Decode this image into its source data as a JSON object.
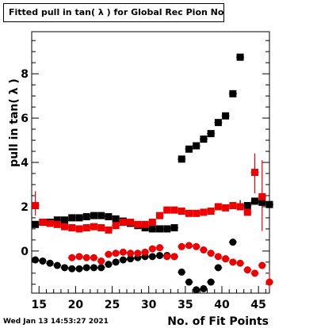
{
  "title": "Fitted pull in tan( λ ) for Global Rec Pion NoHits",
  "date_stamp": "Wed Jan 13 14:53:27 2021",
  "colors": {
    "black_series": "#000000",
    "red_series": "#ee0000",
    "frame": "#000000"
  },
  "chart_data": {
    "type": "scatter",
    "xlabel": "No. of Fit Points",
    "ylabel": "pull in tan( λ )",
    "xlim": [
      14,
      46.5
    ],
    "ylim": [
      -1.9,
      9.9
    ],
    "x_ticks": [
      15,
      20,
      25,
      30,
      35,
      40,
      45
    ],
    "y_ticks": [
      0,
      2,
      4,
      6,
      8
    ],
    "grid": false,
    "series": [
      {
        "marker": "square",
        "color": "#000000",
        "points": [
          [
            14.5,
            1.2
          ],
          [
            15.5,
            1.3
          ],
          [
            16.5,
            1.3
          ],
          [
            17.5,
            1.4
          ],
          [
            18.5,
            1.4
          ],
          [
            19.5,
            1.5
          ],
          [
            20.5,
            1.5
          ],
          [
            21.5,
            1.55
          ],
          [
            22.5,
            1.6
          ],
          [
            23.5,
            1.6
          ],
          [
            24.5,
            1.55
          ],
          [
            25.5,
            1.45
          ],
          [
            26.5,
            1.35
          ],
          [
            27.5,
            1.25
          ],
          [
            28.5,
            1.15
          ],
          [
            29.5,
            1.05
          ],
          [
            30.5,
            1.0
          ],
          [
            31.5,
            1.0
          ],
          [
            32.5,
            1.0
          ],
          [
            33.5,
            1.05
          ],
          [
            34.5,
            4.15
          ],
          [
            35.5,
            4.6
          ],
          [
            36.5,
            4.75
          ],
          [
            37.5,
            5.05
          ],
          [
            38.5,
            5.3
          ],
          [
            39.5,
            5.8
          ],
          [
            40.5,
            6.1
          ],
          [
            41.5,
            7.1
          ],
          [
            42.5,
            8.75
          ],
          [
            43.5,
            2.05
          ],
          [
            44.5,
            2.25
          ],
          [
            45.5,
            2.2
          ],
          [
            46.5,
            2.1
          ]
        ]
      },
      {
        "marker": "square",
        "color": "#ee0000",
        "points": [
          [
            14.5,
            2.05
          ],
          [
            15.5,
            1.3
          ],
          [
            16.5,
            1.25
          ],
          [
            17.5,
            1.2
          ],
          [
            18.5,
            1.1
          ],
          [
            19.5,
            1.05
          ],
          [
            20.5,
            1.0
          ],
          [
            21.5,
            1.05
          ],
          [
            22.5,
            1.1
          ],
          [
            23.5,
            1.05
          ],
          [
            24.5,
            0.95
          ],
          [
            25.5,
            1.15
          ],
          [
            26.5,
            1.3
          ],
          [
            27.5,
            1.3
          ],
          [
            28.5,
            1.2
          ],
          [
            29.5,
            1.2
          ],
          [
            30.5,
            1.3
          ],
          [
            31.5,
            1.6
          ],
          [
            32.5,
            1.85
          ],
          [
            33.5,
            1.85
          ],
          [
            34.5,
            1.8
          ],
          [
            35.5,
            1.7
          ],
          [
            36.5,
            1.7
          ],
          [
            37.5,
            1.75
          ],
          [
            38.5,
            1.8
          ],
          [
            39.5,
            2.0
          ],
          [
            40.5,
            1.95
          ],
          [
            41.5,
            2.05
          ],
          [
            42.5,
            2.0
          ],
          [
            43.5,
            1.75
          ],
          [
            44.5,
            3.55
          ],
          [
            45.5,
            2.45
          ]
        ]
      },
      {
        "marker": "circle",
        "color": "#000000",
        "points": [
          [
            14.5,
            -0.4
          ],
          [
            15.5,
            -0.45
          ],
          [
            16.5,
            -0.55
          ],
          [
            17.5,
            -0.65
          ],
          [
            18.5,
            -0.75
          ],
          [
            19.5,
            -0.8
          ],
          [
            20.5,
            -0.8
          ],
          [
            21.5,
            -0.75
          ],
          [
            22.5,
            -0.75
          ],
          [
            23.5,
            -0.75
          ],
          [
            24.5,
            -0.6
          ],
          [
            25.5,
            -0.5
          ],
          [
            26.5,
            -0.4
          ],
          [
            27.5,
            -0.35
          ],
          [
            28.5,
            -0.3
          ],
          [
            29.5,
            -0.25
          ],
          [
            30.5,
            -0.25
          ],
          [
            31.5,
            -0.2
          ],
          [
            32.5,
            -0.2
          ],
          [
            33.5,
            -0.25
          ],
          [
            34.5,
            -0.95
          ],
          [
            35.5,
            -1.4
          ],
          [
            36.5,
            -1.75
          ],
          [
            37.5,
            -1.7
          ],
          [
            38.5,
            -1.4
          ],
          [
            39.5,
            -0.75
          ],
          [
            40.5,
            -0.35
          ],
          [
            41.5,
            0.4
          ]
        ]
      },
      {
        "marker": "circle",
        "color": "#ee0000",
        "points": [
          [
            19.5,
            -0.3
          ],
          [
            20.5,
            -0.25
          ],
          [
            21.5,
            -0.3
          ],
          [
            22.5,
            -0.3
          ],
          [
            23.5,
            -0.45
          ],
          [
            24.5,
            -0.15
          ],
          [
            25.5,
            -0.1
          ],
          [
            26.5,
            -0.05
          ],
          [
            27.5,
            -0.1
          ],
          [
            28.5,
            -0.1
          ],
          [
            29.5,
            -0.05
          ],
          [
            30.5,
            0.1
          ],
          [
            31.5,
            0.15
          ],
          [
            32.5,
            -0.25
          ],
          [
            33.5,
            -0.25
          ],
          [
            34.5,
            0.2
          ],
          [
            35.5,
            0.25
          ],
          [
            36.5,
            0.2
          ],
          [
            37.5,
            0.05
          ],
          [
            38.5,
            -0.1
          ],
          [
            39.5,
            -0.25
          ],
          [
            40.5,
            -0.35
          ],
          [
            41.5,
            -0.5
          ],
          [
            42.5,
            -0.55
          ],
          [
            43.5,
            -0.85
          ],
          [
            44.5,
            -1.0
          ],
          [
            45.5,
            -0.65
          ],
          [
            46.5,
            -1.4
          ]
        ]
      }
    ],
    "error_bars": [
      {
        "color": "#ee0000",
        "x": 14.5,
        "y_low": 1.6,
        "y_high": 2.7
      },
      {
        "color": "#ee0000",
        "x": 44.5,
        "y_low": 2.6,
        "y_high": 4.4
      },
      {
        "color": "#ee0000",
        "x": 45.5,
        "y_low": 0.9,
        "y_high": 4.1
      },
      {
        "color": "#ee0000",
        "x": 46.5,
        "y_low": -1.7,
        "y_high": -0.9
      },
      {
        "color": "#000000",
        "x": 42.5,
        "y_low": 1.9,
        "y_high": 2.3
      }
    ]
  }
}
